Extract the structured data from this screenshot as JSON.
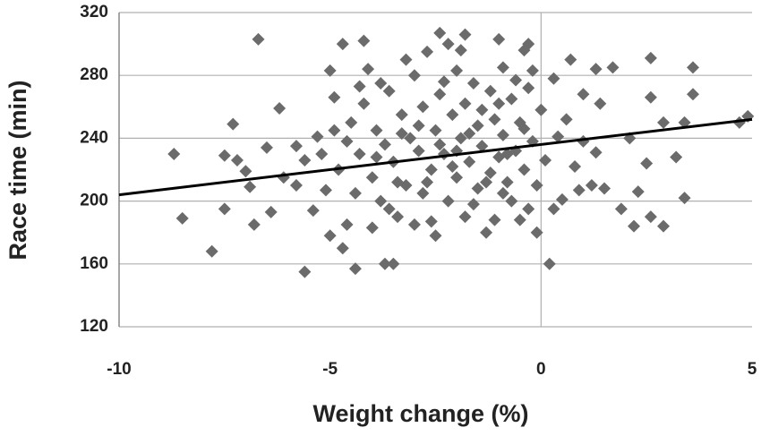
{
  "chart_data": {
    "type": "scatter",
    "x_label": "Weight change (%)",
    "y_label": "Race time (min)",
    "xlim": [
      -10,
      5
    ],
    "xticks": [
      -10,
      -5,
      0,
      5
    ],
    "ylim": [
      120,
      320
    ],
    "yticks": [
      120,
      160,
      200,
      240,
      280,
      320
    ],
    "grid": true,
    "x_zero_line": true,
    "color": "#6b6b6b",
    "x": [
      -8.7,
      -8.5,
      -7.8,
      -7.5,
      -7.5,
      -7.3,
      -7.2,
      -7.0,
      -6.9,
      -6.8,
      -6.7,
      -6.5,
      -6.4,
      -6.2,
      -6.1,
      -5.8,
      -5.8,
      -5.6,
      -5.6,
      -5.4,
      -5.3,
      -5.0,
      -5.0,
      -4.9,
      -4.7,
      -4.7,
      -4.4,
      -4.2,
      -4.1,
      -3.7,
      -3.5,
      -2.4,
      -2.2,
      -1.8,
      -1.0,
      -0.3,
      0.7,
      1.3,
      1.7,
      2.6,
      3.6,
      3.6,
      2.6,
      4.7,
      4.9,
      3.2,
      3.4,
      2.9,
      2.6,
      2.2,
      2.3,
      1.9,
      2.5,
      1.5,
      1.2,
      0.9,
      0.5,
      0.3,
      0.2,
      -0.1,
      1.0,
      1.4,
      1.3,
      0.4,
      1.0,
      -0.5,
      -0.9,
      -0.4,
      -0.2,
      3.4,
      2.9,
      2.1,
      -4.5,
      -4.3,
      -4.0,
      -3.9,
      -3.8,
      -3.6,
      -3.5,
      -3.4,
      -3.3,
      -3.2,
      -3.1,
      -3.0,
      -3.0,
      -2.9,
      -2.8,
      -2.8,
      -2.7,
      -2.6,
      -2.5,
      -2.5,
      -2.4,
      -2.3,
      -2.2,
      -2.1,
      -2.0,
      -2.0,
      -1.9,
      -1.8,
      -1.8,
      -1.7,
      -1.6,
      -1.5,
      -1.5,
      -1.4,
      -1.3,
      -1.2,
      -1.2,
      -1.1,
      -1.0,
      -0.9,
      -0.9,
      -0.8,
      -0.7,
      -0.6,
      -0.5,
      -0.4,
      -0.3,
      -0.2,
      -0.1,
      0.0,
      -4.8,
      -4.6,
      -4.4,
      -4.2,
      -4.0,
      -3.8,
      -3.7,
      -3.4,
      -3.2,
      -2.9,
      -2.6,
      -2.4,
      -2.1,
      -1.9,
      -1.6,
      -1.4,
      -1.1,
      -0.8,
      -0.6,
      -0.3,
      -5.2,
      -5.1,
      -4.9,
      -4.6,
      -4.3,
      -3.9,
      -3.6,
      -3.3,
      -2.7,
      -2.3,
      -2.0,
      -1.7,
      -1.3,
      -1.0,
      -0.7,
      -0.4,
      0.1,
      0.3,
      0.6,
      0.8
    ],
    "values": [
      230,
      189,
      168,
      195,
      229,
      249,
      226,
      219,
      209,
      185,
      303,
      234,
      193,
      259,
      215,
      235,
      210,
      226,
      155,
      194,
      241,
      283,
      178,
      266,
      300,
      170,
      157,
      302,
      284,
      160,
      160,
      307,
      300,
      306,
      303,
      300,
      290,
      284,
      285,
      291,
      285,
      268,
      266,
      250,
      254,
      228,
      202,
      184,
      190,
      184,
      206,
      195,
      224,
      208,
      210,
      207,
      201,
      195,
      160,
      180,
      268,
      262,
      231,
      241,
      238,
      188,
      205,
      296,
      283,
      250,
      250,
      240,
      250,
      230,
      215,
      245,
      200,
      270,
      225,
      190,
      255,
      210,
      240,
      280,
      185,
      232,
      260,
      205,
      295,
      220,
      245,
      178,
      268,
      230,
      200,
      255,
      283,
      215,
      240,
      190,
      262,
      225,
      275,
      208,
      248,
      235,
      180,
      270,
      218,
      252,
      228,
      285,
      242,
      212,
      265,
      232,
      250,
      220,
      272,
      238,
      210,
      258,
      220,
      238,
      205,
      262,
      183,
      275,
      236,
      212,
      290,
      248,
      187,
      236,
      222,
      296,
      198,
      258,
      188,
      230,
      277,
      195,
      230,
      207,
      245,
      185,
      273,
      228,
      195,
      243,
      212,
      276,
      232,
      243,
      212,
      262,
      200,
      246,
      226,
      278,
      252,
      222
    ],
    "trendline": {
      "x": [
        -10,
        5
      ],
      "values": [
        204,
        252
      ],
      "color": "#000000"
    }
  }
}
